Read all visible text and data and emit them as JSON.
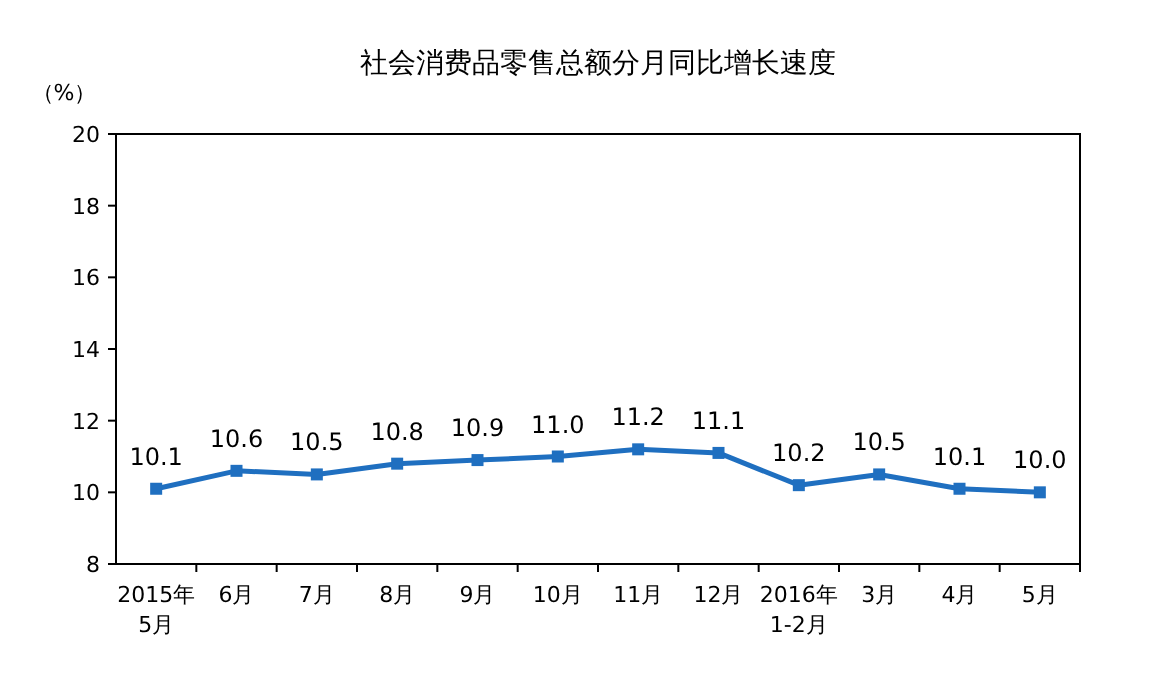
{
  "chart_data": {
    "type": "line",
    "title": "社会消费品零售总额分月同比增长速度",
    "ylabel": "（%）",
    "categories": [
      "2015年\n5月",
      "6月",
      "7月",
      "8月",
      "9月",
      "10月",
      "11月",
      "12月",
      "2016年\n1-2月",
      "3月",
      "4月",
      "5月"
    ],
    "values": [
      10.1,
      10.6,
      10.5,
      10.8,
      10.9,
      11.0,
      11.2,
      11.1,
      10.2,
      10.5,
      10.1,
      10.0
    ],
    "value_labels": [
      "10.1",
      "10.6",
      "10.5",
      "10.8",
      "10.9",
      "11.0",
      "11.2",
      "11.1",
      "10.2",
      "10.5",
      "10.1",
      "10.0"
    ],
    "color": "#1f6fc0",
    "marker": "square",
    "line_style": "solid",
    "grid": false,
    "ylim": [
      8,
      20
    ],
    "yticks": [
      8,
      10,
      12,
      14,
      16,
      18,
      20
    ]
  }
}
